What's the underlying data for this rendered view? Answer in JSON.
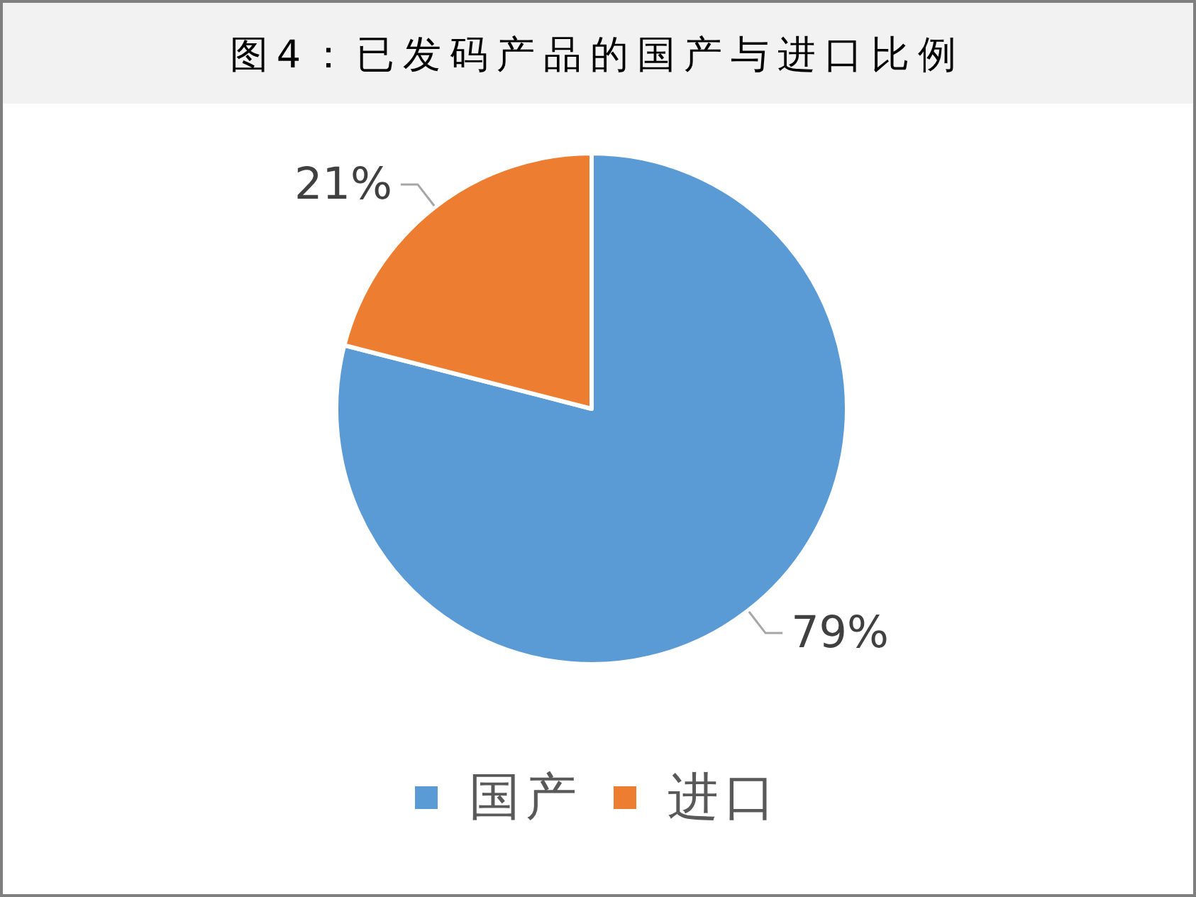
{
  "chart_data": {
    "type": "pie",
    "title": "图4：已发码产品的国产与进口比例",
    "categories": [
      "国产",
      "进口"
    ],
    "values": [
      79,
      21
    ],
    "colors": [
      "#5b9bd5",
      "#ed7d31"
    ],
    "value_labels": [
      "79%",
      "21%"
    ],
    "legend": "bottom"
  }
}
